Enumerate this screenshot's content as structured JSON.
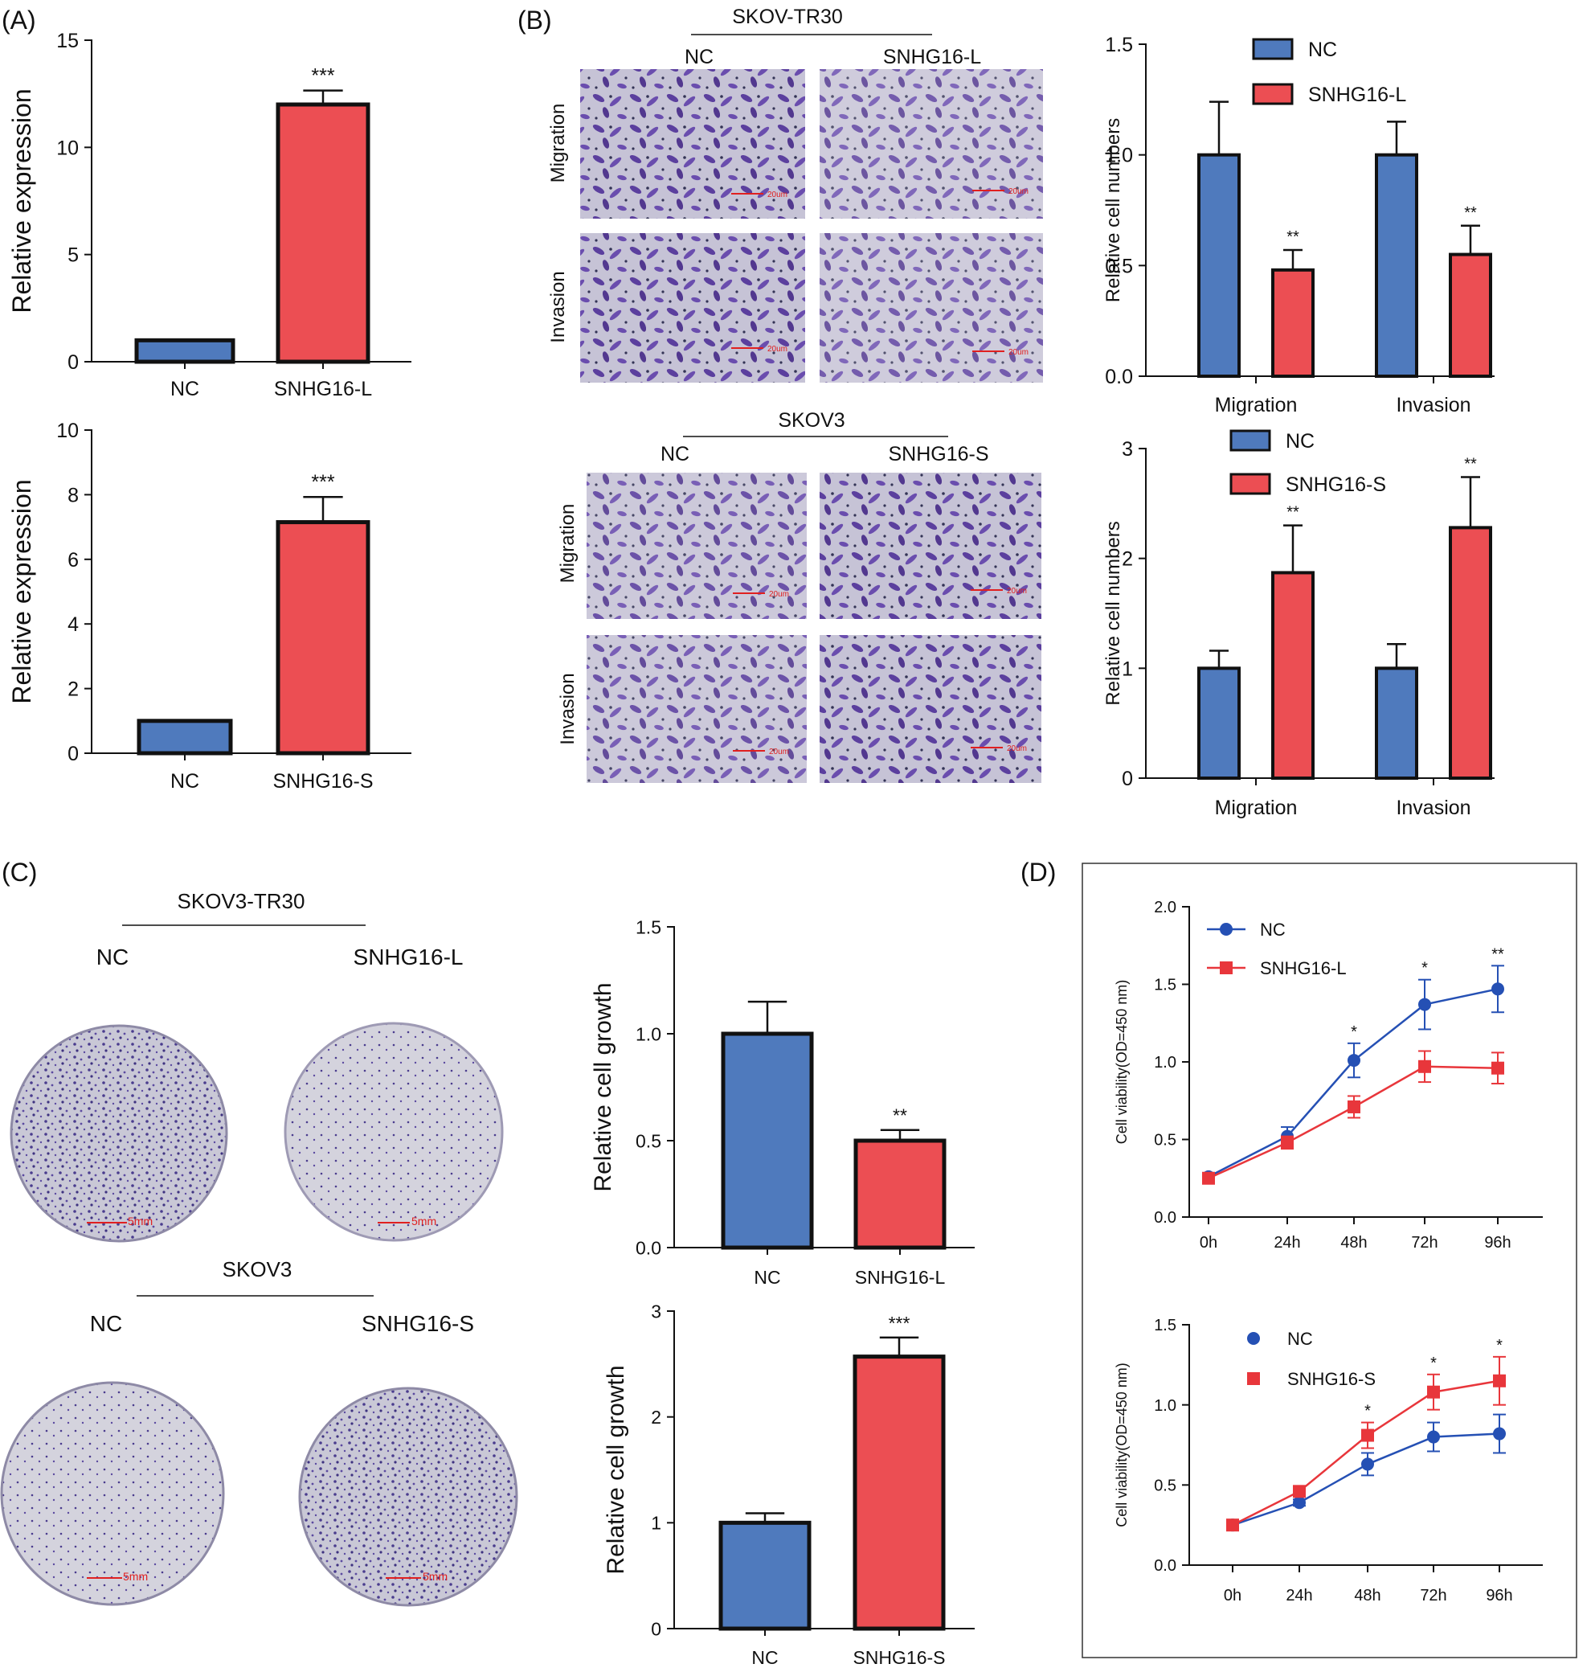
{
  "colors": {
    "nc": "#4F7ABD",
    "treat": "#EC4E53",
    "nc_line": "#2550B4",
    "treat_line": "#E8363B",
    "stain": "#5B3F9E",
    "scale": "#E02020"
  },
  "panel_labels": {
    "a": "(A)",
    "b": "(B)",
    "c": "(C)",
    "d": "(D)"
  },
  "chart_data": [
    {
      "id": "a1",
      "type": "bar",
      "categories": [
        "NC",
        "SNHG16-L"
      ],
      "values": [
        1,
        12
      ],
      "errors": [
        0,
        0.65
      ],
      "significance": [
        "",
        "***"
      ],
      "ylabel": "Relative expression",
      "ylim": [
        0,
        15
      ],
      "yticks": [
        0,
        5,
        10,
        15
      ],
      "ytick_labels": [
        "0",
        "5",
        "10",
        "15"
      ]
    },
    {
      "id": "a2",
      "type": "bar",
      "categories": [
        "NC",
        "SNHG16-S"
      ],
      "values": [
        1,
        7.15
      ],
      "errors": [
        0,
        0.78
      ],
      "significance": [
        "",
        "***"
      ],
      "ylabel": "Relative expression",
      "ylim": [
        0,
        10
      ],
      "yticks": [
        0,
        2,
        4,
        6,
        8,
        10
      ],
      "ytick_labels": [
        "0",
        "2",
        "4",
        "6",
        "8",
        "10"
      ]
    },
    {
      "id": "b1",
      "type": "bar",
      "groups": [
        "Migration",
        "Invasion"
      ],
      "series": [
        {
          "name": "NC",
          "values": [
            1.0,
            1.0
          ],
          "errors": [
            0.24,
            0.15
          ]
        },
        {
          "name": "SNHG16-L",
          "values": [
            0.48,
            0.55
          ],
          "errors": [
            0.09,
            0.13
          ]
        }
      ],
      "significance": [
        [
          "",
          "**"
        ],
        [
          "",
          "**"
        ]
      ],
      "ylabel": "Relative cell numbers",
      "ylim": [
        0,
        1.5
      ],
      "yticks": [
        0,
        0.5,
        1.0,
        1.5
      ],
      "ytick_labels": [
        "0.0",
        "0.5",
        "1.0",
        "1.5"
      ],
      "legend": "top"
    },
    {
      "id": "b2",
      "type": "bar",
      "groups": [
        "Migration",
        "Invasion"
      ],
      "series": [
        {
          "name": "NC",
          "values": [
            1.0,
            1.0
          ],
          "errors": [
            0.16,
            0.22
          ]
        },
        {
          "name": "SNHG16-S",
          "values": [
            1.87,
            2.28
          ],
          "errors": [
            0.43,
            0.46
          ]
        }
      ],
      "significance": [
        [
          "",
          "**"
        ],
        [
          "",
          "**"
        ]
      ],
      "ylabel": "Relative cell numbers",
      "ylim": [
        0,
        3
      ],
      "yticks": [
        0,
        1,
        2,
        3
      ],
      "ytick_labels": [
        "0",
        "1",
        "2",
        "3"
      ],
      "legend": "top"
    },
    {
      "id": "c1",
      "type": "bar",
      "categories": [
        "NC",
        "SNHG16-L"
      ],
      "values": [
        1.0,
        0.5
      ],
      "errors": [
        0.15,
        0.05
      ],
      "significance": [
        "",
        "**"
      ],
      "ylabel": "Relative cell growth",
      "ylim": [
        0,
        1.5
      ],
      "yticks": [
        0,
        0.5,
        1.0,
        1.5
      ],
      "ytick_labels": [
        "0.0",
        "0.5",
        "1.0",
        "1.5"
      ]
    },
    {
      "id": "c2",
      "type": "bar",
      "categories": [
        "NC",
        "SNHG16-S"
      ],
      "values": [
        1.0,
        2.57
      ],
      "errors": [
        0.09,
        0.18
      ],
      "significance": [
        "",
        "***"
      ],
      "ylabel": "Relative cell growth",
      "ylim": [
        0,
        3
      ],
      "yticks": [
        0,
        1,
        2,
        3
      ],
      "ytick_labels": [
        "0",
        "1",
        "2",
        "3"
      ]
    },
    {
      "id": "d1",
      "type": "line",
      "x": [
        "0h",
        "24h",
        "48h",
        "72h",
        "96h"
      ],
      "series": [
        {
          "name": "NC",
          "marker": "circle",
          "values": [
            0.26,
            0.52,
            1.01,
            1.37,
            1.47
          ],
          "errors": [
            0.02,
            0.06,
            0.11,
            0.16,
            0.15
          ]
        },
        {
          "name": "SNHG16-L",
          "marker": "square",
          "values": [
            0.25,
            0.48,
            0.71,
            0.97,
            0.96
          ],
          "errors": [
            0.02,
            0.04,
            0.07,
            0.1,
            0.1
          ]
        }
      ],
      "significance": [
        "",
        "",
        "*",
        "*",
        "**"
      ],
      "ylabel": "Cell viability(OD=450 nm)",
      "ylim": [
        0,
        2.0
      ],
      "yticks": [
        0,
        0.5,
        1.0,
        1.5,
        2.0
      ],
      "ytick_labels": [
        "0.0",
        "0.5",
        "1.0",
        "1.5",
        "2.0"
      ],
      "legend": "top-left"
    },
    {
      "id": "d2",
      "type": "line",
      "x": [
        "0h",
        "24h",
        "48h",
        "72h",
        "96h"
      ],
      "series": [
        {
          "name": "NC",
          "marker": "circle",
          "values": [
            0.25,
            0.39,
            0.63,
            0.8,
            0.82
          ],
          "errors": [
            0.01,
            0.02,
            0.07,
            0.09,
            0.12
          ]
        },
        {
          "name": "SNHG16-S",
          "marker": "square",
          "values": [
            0.25,
            0.46,
            0.81,
            1.08,
            1.15
          ],
          "errors": [
            0.02,
            0.03,
            0.08,
            0.11,
            0.15
          ]
        }
      ],
      "significance": [
        "",
        "",
        "*",
        "*",
        "*"
      ],
      "ylabel": "Cell viability(OD=450 nm)",
      "ylim": [
        0,
        1.5
      ],
      "yticks": [
        0,
        0.5,
        1.0,
        1.5
      ],
      "ytick_labels": [
        "0.0",
        "0.5",
        "1.0",
        "1.5"
      ],
      "legend": "top-left"
    }
  ],
  "micrographs": {
    "top": {
      "cell_line": "SKOV-TR30",
      "col_nc": "NC",
      "col_treat": "SNHG16-L",
      "row1": "Migration",
      "row2": "Invasion"
    },
    "bottom": {
      "cell_line": "SKOV3",
      "col_nc": "NC",
      "col_treat": "SNHG16-S",
      "row1": "Migration",
      "row2": "Invasion"
    },
    "scale_label": "20um"
  },
  "colony": {
    "top": {
      "cell_line": "SKOV3-TR30",
      "col_nc": "NC",
      "col_treat": "SNHG16-L"
    },
    "bottom": {
      "cell_line": "SKOV3",
      "col_nc": "NC",
      "col_treat": "SNHG16-S"
    },
    "scale_label": "5mm"
  }
}
